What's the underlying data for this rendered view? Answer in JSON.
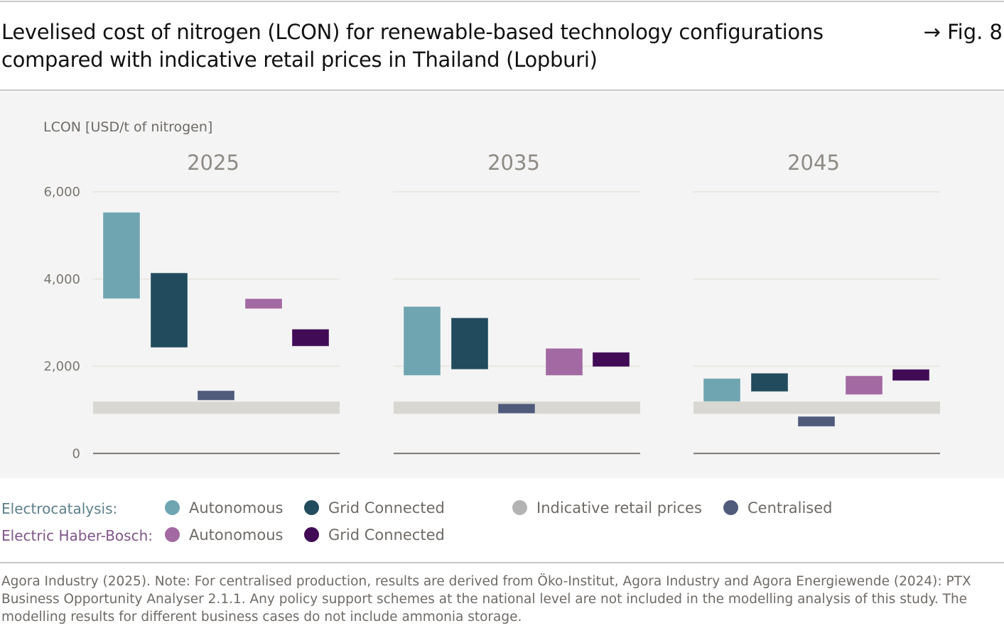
{
  "header": {
    "title": "Levelised cost of nitrogen (LCON) for renewable-based technology configurations compared with indicative retail prices in Thailand (Lopburi)",
    "fig_ref": "→ Fig. 8"
  },
  "colors": {
    "elec_autonomous": "#6fa5b1",
    "elec_grid": "#224c5d",
    "retail": "#d8d7d1",
    "retail_legend": "#b3b3b3",
    "centralised": "#505a7b",
    "hb_autonomous": "#a269a2",
    "hb_grid": "#410b56",
    "elec_group_label": "#5d7f89",
    "hb_group_label": "#7f5589",
    "grid": "#e8e7e1",
    "baseline": "#7a7670"
  },
  "chart_data": {
    "type": "bar",
    "subtype": "floating range bars (min–max) per panel",
    "title": "Levelised cost of nitrogen (LCON) for renewable-based technology configurations compared with indicative retail prices in Thailand (Lopburi)",
    "ylabel": "LCON [USD/t of nitrogen]",
    "xlabel": "",
    "ylim": [
      0,
      6000
    ],
    "yticks": [
      0,
      2000,
      4000,
      6000
    ],
    "ytick_labels": [
      "0",
      "2,000",
      "4,000",
      "6,000"
    ],
    "grid": true,
    "legend_position": "bottom",
    "panels": [
      {
        "year": "2025",
        "retail_band": [
          910,
          1190
        ],
        "bars": [
          {
            "series": "Electrocatalysis: Autonomous",
            "key": "elec_autonomous",
            "min": 3550,
            "max": 5530
          },
          {
            "series": "Electrocatalysis: Grid Connected",
            "key": "elec_grid",
            "min": 2430,
            "max": 4140
          },
          {
            "series": "Centralised",
            "key": "centralised",
            "min": 1220,
            "max": 1440
          },
          {
            "series": "Electric Haber-Bosch: Autonomous",
            "key": "hb_autonomous",
            "min": 3320,
            "max": 3550
          },
          {
            "series": "Electric Haber-Bosch: Grid Connected",
            "key": "hb_grid",
            "min": 2460,
            "max": 2850
          }
        ]
      },
      {
        "year": "2035",
        "retail_band": [
          910,
          1190
        ],
        "bars": [
          {
            "series": "Electrocatalysis: Autonomous",
            "key": "elec_autonomous",
            "min": 1790,
            "max": 3370
          },
          {
            "series": "Electrocatalysis: Grid Connected",
            "key": "elec_grid",
            "min": 1930,
            "max": 3110
          },
          {
            "series": "Centralised",
            "key": "centralised",
            "min": 920,
            "max": 1140
          },
          {
            "series": "Electric Haber-Bosch: Autonomous",
            "key": "hb_autonomous",
            "min": 1790,
            "max": 2410
          },
          {
            "series": "Electric Haber-Bosch: Grid Connected",
            "key": "hb_grid",
            "min": 1990,
            "max": 2320
          }
        ]
      },
      {
        "year": "2045",
        "retail_band": [
          910,
          1190
        ],
        "bars": [
          {
            "series": "Electrocatalysis: Autonomous",
            "key": "elec_autonomous",
            "min": 1190,
            "max": 1720
          },
          {
            "series": "Electrocatalysis: Grid Connected",
            "key": "elec_grid",
            "min": 1420,
            "max": 1840
          },
          {
            "series": "Centralised",
            "key": "centralised",
            "min": 620,
            "max": 850
          },
          {
            "series": "Electric Haber-Bosch: Autonomous",
            "key": "hb_autonomous",
            "min": 1350,
            "max": 1780
          },
          {
            "series": "Electric Haber-Bosch: Grid Connected",
            "key": "hb_grid",
            "min": 1670,
            "max": 1930
          }
        ]
      }
    ],
    "legend": [
      {
        "group": "Electrocatalysis:",
        "label": "Autonomous",
        "key": "elec_autonomous"
      },
      {
        "group": "Electrocatalysis:",
        "label": "Grid Connected",
        "key": "elec_grid"
      },
      {
        "group": "",
        "label": "Indicative retail prices",
        "key": "retail_legend"
      },
      {
        "group": "",
        "label": "Centralised",
        "key": "centralised"
      },
      {
        "group": "Electric Haber-Bosch:",
        "label": "Autonomous",
        "key": "hb_autonomous"
      },
      {
        "group": "Electric Haber-Bosch:",
        "label": "Grid Connected",
        "key": "hb_grid"
      }
    ]
  },
  "legend": {
    "elec_group": "Electrocatalysis:",
    "hb_group": "Electric Haber-Bosch:",
    "elec_autonomous": "Autonomous",
    "elec_grid": "Grid Connected",
    "retail": "Indicative retail prices",
    "centralised": "Centralised",
    "hb_autonomous": "Autonomous",
    "hb_grid": "Grid Connected"
  },
  "footnote": "Agora Industry (2025). Note: For centralised production, results are derived from Öko-Institut, Agora Industry and Agora Energiewende (2024): PTX Business Opportunity Analyser 2.1.1. Any policy support schemes at the national level are not included in the modelling analysis of this study. The modelling results for different business cases do not include ammonia storage."
}
